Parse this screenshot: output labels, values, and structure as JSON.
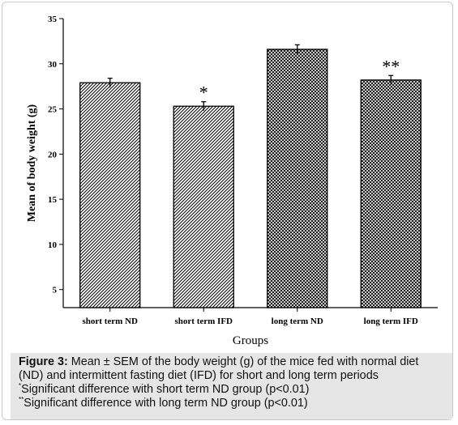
{
  "chart_data": {
    "type": "bar",
    "categories": [
      "short term ND",
      "short term IFD",
      "long term ND",
      "long term IFD"
    ],
    "values": [
      27.9,
      25.3,
      31.6,
      28.2
    ],
    "errors": [
      0.5,
      0.5,
      0.5,
      0.5
    ],
    "annotations": [
      "",
      "*",
      "",
      "**"
    ],
    "patterns": [
      "diagonal-hatch",
      "diagonal-hatch",
      "cross-hatch",
      "cross-hatch"
    ],
    "xlabel": "Groups",
    "ylabel": "Mean of body weight (g)",
    "ylim": [
      3,
      35
    ],
    "yticks": [
      5,
      10,
      15,
      20,
      25,
      30,
      35
    ],
    "grid": false,
    "bar_color": "#000000"
  },
  "caption": {
    "figure_label": "Figure 3:",
    "text": "Mean ± SEM of the body weight (g) of the mice fed with normal diet (ND) and intermittent fasting diet (IFD) for short and long term periods",
    "note1_mark": "*",
    "note1": "Significant difference with short term ND group (p<0.01)",
    "note2_mark": "**",
    "note2": "Significant difference with long term ND group (p<0.01)"
  }
}
